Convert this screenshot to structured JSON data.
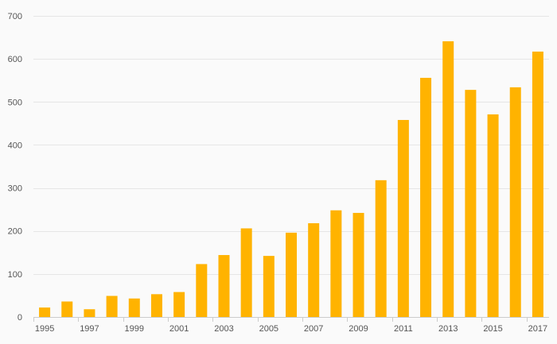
{
  "chart_data": {
    "type": "bar",
    "categories": [
      "1995",
      "1996",
      "1997",
      "1998",
      "1999",
      "2000",
      "2001",
      "2002",
      "2003",
      "2004",
      "2005",
      "2006",
      "2007",
      "2008",
      "2009",
      "2010",
      "2011",
      "2012",
      "2013",
      "2014",
      "2015",
      "2016",
      "2017"
    ],
    "x_tick_labels": [
      "1995",
      "1997",
      "1999",
      "2001",
      "2003",
      "2005",
      "2007",
      "2009",
      "2011",
      "2013",
      "2015",
      "2017"
    ],
    "values": [
      22,
      36,
      18,
      49,
      43,
      53,
      58,
      123,
      144,
      206,
      142,
      196,
      218,
      248,
      242,
      318,
      458,
      556,
      641,
      528,
      471,
      534,
      617
    ],
    "y_ticks": [
      0,
      100,
      200,
      300,
      400,
      500,
      600,
      700
    ],
    "ylim": [
      0,
      700
    ],
    "title": "",
    "xlabel": "",
    "ylabel": "",
    "grid": true,
    "legend": "none",
    "colors": {
      "bar": "#FFB300",
      "grid": "#e6e6e6",
      "axis": "#cccccc",
      "text": "#555555",
      "background": "#fafafa"
    }
  }
}
